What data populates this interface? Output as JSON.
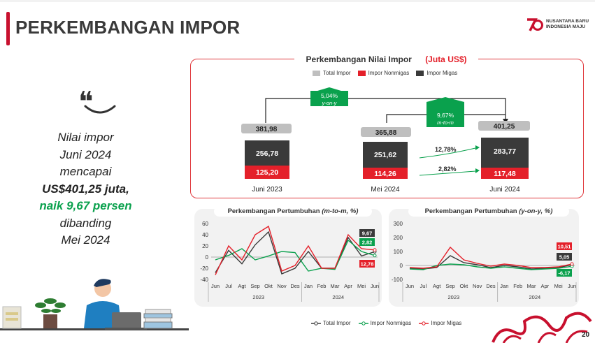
{
  "header": {
    "title": "PERKEMBANGAN IMPOR",
    "logo_text_1": "NUSANTARA BARU",
    "logo_text_2": "INDONESIA MAJU"
  },
  "summary": {
    "line1": "Nilai impor",
    "line2": "Juni 2024",
    "line3": "mencapai",
    "line4": "US$401,25 juta,",
    "line5": "naik 9,67 persen",
    "line6": "dibanding",
    "line7": "Mei 2024"
  },
  "main_chart": {
    "title_prefix": "Perkembangan Nilai Impor",
    "title_unit": "(Juta US$)",
    "legend": [
      "Total Impor",
      "Impor Nonmigas",
      "Impor Migas"
    ],
    "colors": {
      "total": "#bfbfbf",
      "nonmigas": "#e4202a",
      "migas": "#3a3a3a",
      "green": "#0aa14d"
    },
    "yoy_label": "5,04%",
    "yoy_sub": "y-on-y",
    "mtm_label": "9,67%",
    "mtm_sub": "m-to-m",
    "growth_migas": "12,78%",
    "growth_nonmigas": "2,82%",
    "bars": [
      {
        "period": "Juni 2023",
        "total": "381,98",
        "migas": "256,78",
        "nonmigas": "125,20"
      },
      {
        "period": "Mei 2024",
        "total": "365,88",
        "migas": "251,62",
        "nonmigas": "114,26"
      },
      {
        "period": "Juni 2024",
        "total": "401,25",
        "migas": "283,77",
        "nonmigas": "117,48"
      }
    ]
  },
  "chart_data": [
    {
      "type": "line",
      "title_prefix": "Perkembangan Pertumbuhan",
      "title_em": "(m-to-m, %)",
      "x": [
        "Jun",
        "Jul",
        "Agt",
        "Sep",
        "Okt",
        "Nov",
        "Des",
        "Jan",
        "Feb",
        "Mar",
        "Apr",
        "Mei",
        "Jun"
      ],
      "year_labels": [
        "2023",
        "2024"
      ],
      "yticks": [
        "60",
        "40",
        "20",
        "0",
        "-20",
        "-40"
      ],
      "ylim": [
        -40,
        60
      ],
      "series": [
        {
          "name": "Total Impor",
          "color": "#3a3a3a",
          "values": [
            -28,
            12,
            -12,
            22,
            45,
            -30,
            -20,
            10,
            -20,
            -20,
            35,
            2,
            9.67
          ]
        },
        {
          "name": "Impor Nonmigas",
          "color": "#0aa14d",
          "values": [
            -5,
            3,
            15,
            -5,
            2,
            10,
            8,
            -25,
            -20,
            -22,
            30,
            10,
            2.82
          ]
        },
        {
          "name": "Impor Migas",
          "color": "#e4202a",
          "values": [
            -32,
            20,
            -5,
            40,
            55,
            -25,
            -15,
            20,
            -20,
            -20,
            40,
            15,
            12.78
          ]
        }
      ],
      "end_labels": {
        "total": "9,67",
        "nonmigas": "2,82",
        "migas": "12,78"
      }
    },
    {
      "type": "line",
      "title_prefix": "Perkembangan Pertumbuhan",
      "title_em": "(y-on-y, %)",
      "x": [
        "Jun",
        "Jul",
        "Agt",
        "Sep",
        "Okt",
        "Nov",
        "Des",
        "Jan",
        "Feb",
        "Mar",
        "Apr",
        "Mei",
        "Jun"
      ],
      "year_labels": [
        "2023",
        "2024"
      ],
      "yticks": [
        "300",
        "200",
        "100",
        "0",
        "-100"
      ],
      "ylim": [
        -100,
        300
      ],
      "series": [
        {
          "name": "Total Impor",
          "color": "#3a3a3a",
          "values": [
            -20,
            -25,
            -15,
            70,
            20,
            5,
            -15,
            0,
            -10,
            -25,
            -20,
            -15,
            5.05
          ]
        },
        {
          "name": "Impor Nonmigas",
          "color": "#0aa14d",
          "values": [
            -25,
            -30,
            0,
            10,
            5,
            -10,
            -20,
            -10,
            -20,
            -30,
            -25,
            -20,
            -6.17
          ]
        },
        {
          "name": "Impor Migas",
          "color": "#e4202a",
          "values": [
            -15,
            -20,
            -10,
            130,
            40,
            15,
            -5,
            10,
            0,
            -15,
            -15,
            -10,
            10.51
          ]
        }
      ],
      "end_labels": {
        "total": "5,05",
        "nonmigas": "-6,17",
        "migas": "10,51"
      }
    }
  ],
  "bottom_legend": [
    "Total Impor",
    "Impor Nonmigas",
    "Impor Migas"
  ],
  "footer": {
    "page_number": "20"
  }
}
